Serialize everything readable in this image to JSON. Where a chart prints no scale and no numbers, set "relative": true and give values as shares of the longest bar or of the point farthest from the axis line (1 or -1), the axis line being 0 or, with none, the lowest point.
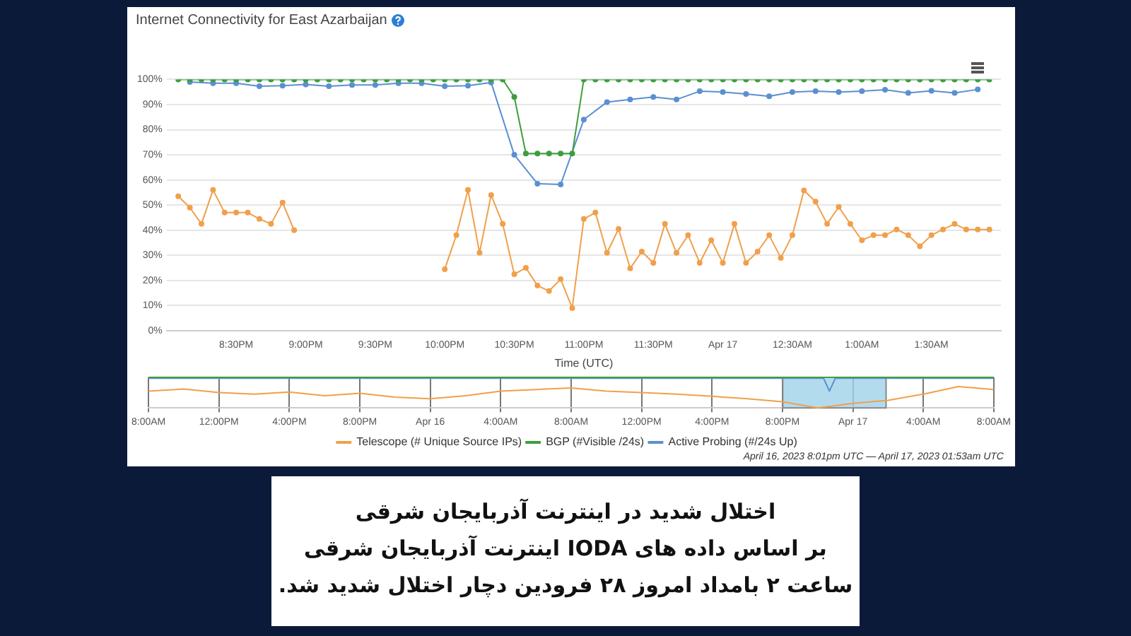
{
  "chart_data": [
    {
      "type": "line",
      "title": "Internet Connectivity for East Azarbaijan",
      "xlabel": "Time (UTC)",
      "x": [
        "2023-04-16T20:05",
        "2023-04-16T20:10",
        "2023-04-16T20:15",
        "2023-04-16T20:20",
        "2023-04-16T20:25",
        "2023-04-16T20:30",
        "2023-04-16T20:35",
        "2023-04-16T20:40",
        "2023-04-16T20:45",
        "2023-04-16T20:50",
        "2023-04-16T20:55",
        "2023-04-16T21:00",
        "2023-04-16T21:05",
        "2023-04-16T21:10",
        "2023-04-16T21:15",
        "2023-04-16T21:20",
        "2023-04-16T21:25",
        "2023-04-16T21:30",
        "2023-04-16T21:35",
        "2023-04-16T21:40",
        "2023-04-16T21:45",
        "2023-04-16T21:50",
        "2023-04-16T21:55",
        "2023-04-16T22:00",
        "2023-04-16T22:05",
        "2023-04-16T22:10",
        "2023-04-16T22:15",
        "2023-04-16T22:20",
        "2023-04-16T22:25",
        "2023-04-16T22:30",
        "2023-04-16T22:35",
        "2023-04-16T22:40",
        "2023-04-16T22:45",
        "2023-04-16T22:50",
        "2023-04-16T22:55",
        "2023-04-16T23:00",
        "2023-04-16T23:05",
        "2023-04-16T23:10",
        "2023-04-16T23:15",
        "2023-04-16T23:20",
        "2023-04-16T23:25",
        "2023-04-16T23:30",
        "2023-04-16T23:35",
        "2023-04-16T23:40",
        "2023-04-16T23:45",
        "2023-04-16T23:50",
        "2023-04-16T23:55",
        "2023-04-17T00:00",
        "2023-04-17T00:05",
        "2023-04-17T00:10",
        "2023-04-17T00:15",
        "2023-04-17T00:20",
        "2023-04-17T00:25",
        "2023-04-17T00:30",
        "2023-04-17T00:35",
        "2023-04-17T00:40",
        "2023-04-17T00:45",
        "2023-04-17T00:50",
        "2023-04-17T00:55",
        "2023-04-17T01:00",
        "2023-04-17T01:05",
        "2023-04-17T01:10",
        "2023-04-17T01:15",
        "2023-04-17T01:20",
        "2023-04-17T01:25",
        "2023-04-17T01:30",
        "2023-04-17T01:35",
        "2023-04-17T01:40",
        "2023-04-17T01:45",
        "2023-04-17T01:50",
        "2023-04-17T01:55"
      ],
      "series": [
        {
          "color": "#f0a04b",
          "values": [
            53.5,
            49,
            42.5,
            56,
            47,
            47,
            47,
            44.5,
            42.5,
            51,
            40,
            null,
            null,
            null,
            null,
            null,
            null,
            null,
            null,
            null,
            null,
            null,
            null,
            24.5,
            38,
            56,
            31,
            54,
            42.5,
            22.5,
            25,
            18,
            15.8,
            20.5,
            9,
            44.5,
            47,
            31,
            40.5,
            24.8,
            31.5,
            27,
            42.5,
            31,
            38,
            27,
            36,
            27,
            42.5,
            27,
            31.5,
            38,
            29,
            38,
            55.8,
            51.4,
            42.5,
            49.3,
            42.5,
            36,
            38,
            38,
            40.3,
            38,
            33.6,
            38,
            40.3,
            42.5,
            40.3,
            40.3,
            40.3
          ]
        },
        {
          "color": "#3d9e3d",
          "values": [
            100,
            100,
            100,
            100,
            100,
            100,
            100,
            100,
            100,
            100,
            100,
            100,
            100,
            100,
            100,
            100,
            100,
            100,
            100,
            100,
            100,
            100,
            100,
            100,
            100,
            100,
            100,
            100,
            100,
            93,
            70.5,
            70.5,
            70.5,
            70.5,
            70.5,
            100,
            100,
            100,
            100,
            100,
            100,
            100,
            100,
            100,
            100,
            100,
            100,
            100,
            100,
            100,
            100,
            100,
            100,
            100,
            100,
            100,
            100,
            100,
            100,
            100,
            100,
            100,
            100,
            100,
            100,
            100,
            100,
            100,
            100,
            100,
            100
          ]
        },
        {
          "color": "#5b8fd1",
          "x": [
            "2023-04-16T20:10",
            "2023-04-16T20:20",
            "2023-04-16T20:30",
            "2023-04-16T20:40",
            "2023-04-16T20:50",
            "2023-04-16T21:00",
            "2023-04-16T21:10",
            "2023-04-16T21:20",
            "2023-04-16T21:30",
            "2023-04-16T21:40",
            "2023-04-16T21:50",
            "2023-04-16T22:00",
            "2023-04-16T22:10",
            "2023-04-16T22:20",
            "2023-04-16T22:30",
            "2023-04-16T22:40",
            "2023-04-16T22:50",
            "2023-04-16T23:00",
            "2023-04-16T23:10",
            "2023-04-16T23:20",
            "2023-04-16T23:30",
            "2023-04-16T23:40",
            "2023-04-16T23:50",
            "2023-04-17T00:00",
            "2023-04-17T00:10",
            "2023-04-17T00:20",
            "2023-04-17T00:30",
            "2023-04-17T00:40",
            "2023-04-17T00:50",
            "2023-04-17T01:00",
            "2023-04-17T01:10",
            "2023-04-17T01:20",
            "2023-04-17T01:30",
            "2023-04-17T01:40",
            "2023-04-17T01:50"
          ],
          "values": [
            99,
            98.5,
            98.5,
            97.3,
            97.5,
            98,
            97.3,
            97.8,
            97.8,
            98.5,
            98.5,
            97.3,
            97.5,
            98.8,
            70,
            58.5,
            58.2,
            84,
            91,
            92,
            93,
            92,
            95.3,
            95,
            94.2,
            93.3,
            95,
            95.3,
            95,
            95.3,
            95.9,
            94.6,
            95.5,
            94.6,
            96
          ]
        }
      ],
      "xlim": [
        "2023-04-16T20:00",
        "2023-04-17T02:00"
      ],
      "xticks": [
        {
          "value": "2023-04-16T20:30",
          "label": "8:30PM"
        },
        {
          "value": "2023-04-16T21:00",
          "label": "9:00PM"
        },
        {
          "value": "2023-04-16T21:30",
          "label": "9:30PM"
        },
        {
          "value": "2023-04-16T22:00",
          "label": "10:00PM"
        },
        {
          "value": "2023-04-16T22:30",
          "label": "10:30PM"
        },
        {
          "value": "2023-04-16T23:00",
          "label": "11:00PM"
        },
        {
          "value": "2023-04-16T23:30",
          "label": "11:30PM"
        },
        {
          "value": "2023-04-17T00:00",
          "label": "Apr 17"
        },
        {
          "value": "2023-04-17T00:30",
          "label": "12:30AM"
        },
        {
          "value": "2023-04-17T01:00",
          "label": "1:00AM"
        },
        {
          "value": "2023-04-17T01:30",
          "label": "1:30AM"
        }
      ],
      "ylim": [
        0,
        100
      ],
      "yticks": [
        {
          "value": 0,
          "label": "0%"
        },
        {
          "value": 10,
          "label": "10%"
        },
        {
          "value": 20,
          "label": "20%"
        },
        {
          "value": 30,
          "label": "30%"
        },
        {
          "value": 40,
          "label": "40%"
        },
        {
          "value": 50,
          "label": "50%"
        },
        {
          "value": 60,
          "label": "60%"
        },
        {
          "value": 70,
          "label": "70%"
        },
        {
          "value": 80,
          "label": "80%"
        },
        {
          "value": 90,
          "label": "90%"
        },
        {
          "value": 100,
          "label": "100%"
        }
      ],
      "grid": "y",
      "marker": "circle",
      "line_style": "solid",
      "legend": false,
      "annotations": [
        "اختلال شدید در اینترنت آذربایجان شرقی",
        "بر اساس داده های IODA اینترنت آذربایجان شرقی",
        "ساعت ۲ بامداد امروز ۲۸ فرودین  دچار اختلال شدید شد."
      ]
    },
    {
      "type": "line",
      "relative": true,
      "x": [
        "2023-04-15T08:00",
        "2023-04-15T10:00",
        "2023-04-15T12:00",
        "2023-04-15T14:00",
        "2023-04-15T16:00",
        "2023-04-15T18:00",
        "2023-04-15T20:00",
        "2023-04-15T22:00",
        "2023-04-16T00:00",
        "2023-04-16T02:00",
        "2023-04-16T04:00",
        "2023-04-16T06:00",
        "2023-04-16T08:00",
        "2023-04-16T10:00",
        "2023-04-16T12:00",
        "2023-04-16T14:00",
        "2023-04-16T16:00",
        "2023-04-16T18:00",
        "2023-04-16T20:00",
        "2023-04-16T22:00",
        "2023-04-17T00:00",
        "2023-04-17T02:00",
        "2023-04-17T04:00",
        "2023-04-17T06:00",
        "2023-04-17T08:00"
      ],
      "series": [
        {
          "name": "Telescope (# Unique Source IPs)",
          "color": "#f0a04b",
          "values": [
            0.55,
            0.62,
            0.5,
            0.45,
            0.52,
            0.4,
            0.48,
            0.35,
            0.3,
            0.4,
            0.55,
            0.6,
            0.65,
            0.55,
            0.5,
            0.45,
            0.38,
            0.3,
            0.2,
            0,
            0.15,
            0.25,
            0.45,
            0.7,
            0.6
          ]
        },
        {
          "name": "BGP (#Visible /24s)",
          "color": "#3d9e3d",
          "x": [
            "2023-04-15T08:00",
            "2023-04-17T08:00"
          ],
          "values": [
            1,
            1
          ]
        },
        {
          "name": "Active Probing (#/24s Up)",
          "color": "#5b8fd1",
          "x": [
            "2023-04-15T08:00",
            "2023-04-16T12:00",
            "2023-04-16T22:20",
            "2023-04-16T22:40",
            "2023-04-16T23:00",
            "2023-04-17T08:00"
          ],
          "values": [
            0.97,
            0.97,
            0.97,
            0.55,
            0.97,
            0.97
          ]
        }
      ],
      "xlim": [
        "2023-04-15T08:00",
        "2023-04-17T08:00"
      ],
      "xticks": [
        {
          "value": "2023-04-15T08:00",
          "label": "8:00AM"
        },
        {
          "value": "2023-04-15T12:00",
          "label": "12:00PM"
        },
        {
          "value": "2023-04-15T16:00",
          "label": "4:00PM"
        },
        {
          "value": "2023-04-15T20:00",
          "label": "8:00PM"
        },
        {
          "value": "2023-04-16T00:00",
          "label": "Apr 16"
        },
        {
          "value": "2023-04-16T04:00",
          "label": "4:00AM"
        },
        {
          "value": "2023-04-16T08:00",
          "label": "8:00AM"
        },
        {
          "value": "2023-04-16T12:00",
          "label": "12:00PM"
        },
        {
          "value": "2023-04-16T16:00",
          "label": "4:00PM"
        },
        {
          "value": "2023-04-16T20:00",
          "label": "8:00PM"
        },
        {
          "value": "2023-04-17T00:00",
          "label": "Apr 17"
        },
        {
          "value": "2023-04-17T04:00",
          "label": "4:00AM"
        },
        {
          "value": "2023-04-17T08:00",
          "label": "8:00AM"
        }
      ],
      "bands": [
        {
          "axis": "x",
          "from": "2023-04-16T20:01",
          "to": "2023-04-17T01:53",
          "color": "#9fd3ea"
        }
      ],
      "grid": "x",
      "legend": "bottom",
      "marker": "none",
      "line_style": "solid",
      "annotations": [
        "April 16, 2023 8:01pm UTC — April 17, 2023 01:53am UTC"
      ]
    }
  ]
}
